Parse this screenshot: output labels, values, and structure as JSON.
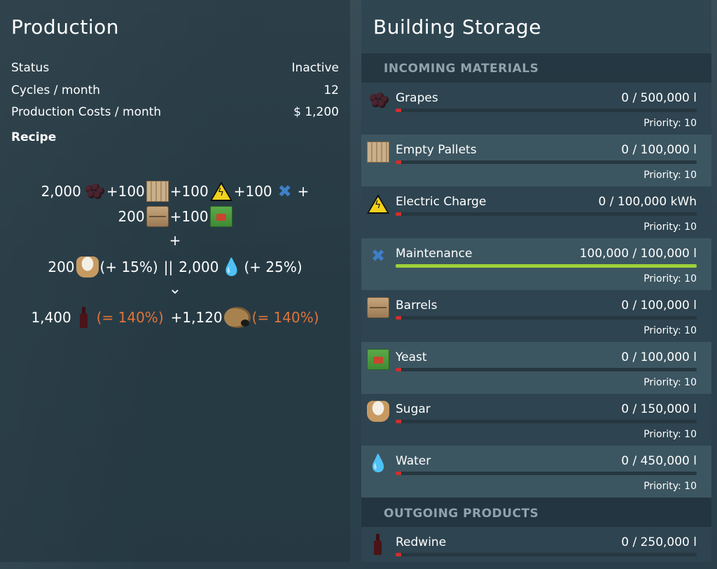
{
  "production": {
    "title": "Production",
    "status_label": "Status",
    "status_value": "Inactive",
    "cycles_label": "Cycles / month",
    "cycles_value": "12",
    "costs_label": "Production Costs / month",
    "costs_value": "$ 1,200",
    "recipe_label": "Recipe",
    "recipe": {
      "line1": {
        "grapes_amount": "2,000",
        "plus1": "+100",
        "plus2": "+100",
        "plus3": "+100",
        "trailing_plus": "+"
      },
      "line2": {
        "barrels_amount": "200",
        "plus1": "+100"
      },
      "plus_sign": "+",
      "line3": {
        "sugar_amount": "200",
        "sugar_bonus": "(+ 15%)",
        "separator": "||",
        "water_amount": "2,000",
        "water_bonus": "(+ 25%)"
      },
      "arrow": "⌄",
      "line4": {
        "wine_amount": "1,400",
        "wine_pct": "(= 140%)",
        "pomace_amount": "+1,120",
        "pomace_pct": "(= 140%)"
      }
    }
  },
  "storage": {
    "title": "Building Storage",
    "incoming_label": "INCOMING MATERIALS",
    "outgoing_label": "OUTGOING PRODUCTS",
    "incoming": [
      {
        "name": "Grapes",
        "value": "0  / 500,000 l",
        "priority": "Priority: 10",
        "icon": "grapes-icon",
        "fill": 0
      },
      {
        "name": "Empty Pallets",
        "value": "0  / 100,000 l",
        "priority": "Priority: 10",
        "icon": "pallet-icon",
        "fill": 0
      },
      {
        "name": "Electric Charge",
        "value": "0  / 100,000 kWh",
        "priority": "Priority: 10",
        "icon": "electric-warning-icon",
        "fill": 0
      },
      {
        "name": "Maintenance",
        "value": "100,000  / 100,000 l",
        "priority": "Priority: 10",
        "icon": "tools-icon",
        "fill": 1
      },
      {
        "name": "Barrels",
        "value": "0  / 100,000 l",
        "priority": "Priority: 10",
        "icon": "barrel-icon",
        "fill": 0
      },
      {
        "name": "Yeast",
        "value": "0  / 100,000 l",
        "priority": "Priority: 10",
        "icon": "yeast-icon",
        "fill": 0
      },
      {
        "name": "Sugar",
        "value": "0  / 150,000 l",
        "priority": "Priority: 10",
        "icon": "sugar-sack-icon",
        "fill": 0
      },
      {
        "name": "Water",
        "value": "0  / 450,000 l",
        "priority": "Priority: 10",
        "icon": "water-drop-icon",
        "fill": 0
      }
    ],
    "outgoing": [
      {
        "name": "Redwine",
        "value": "0  / 250,000 l",
        "icon": "wine-bottle-icon",
        "fill": 0
      }
    ]
  },
  "colors": {
    "accent_orange": "#e0743a",
    "bar_fill_green": "#9ed13a",
    "bar_empty_red": "#d02e2e",
    "section_label": "#8fa3ac"
  }
}
